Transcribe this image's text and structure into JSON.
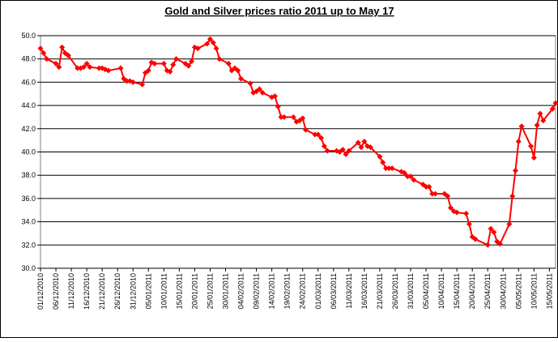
{
  "chart_data": {
    "type": "line",
    "title": "Gold and Silver prices ratio 2011 up to May 17",
    "color": "#ff0000",
    "grid": true,
    "x": [
      "01/12/2010",
      "02/12/2010",
      "03/12/2010",
      "06/12/2010",
      "07/12/2010",
      "08/12/2010",
      "09/12/2010",
      "10/12/2010",
      "13/12/2010",
      "14/12/2010",
      "15/12/2010",
      "16/12/2010",
      "17/12/2010",
      "20/12/2010",
      "21/12/2010",
      "22/12/2010",
      "23/12/2010",
      "27/12/2010",
      "28/12/2010",
      "29/12/2010",
      "30/12/2010",
      "31/12/2010",
      "03/01/2011",
      "04/01/2011",
      "05/01/2011",
      "06/01/2011",
      "07/01/2011",
      "10/01/2011",
      "11/01/2011",
      "12/01/2011",
      "13/01/2011",
      "14/01/2011",
      "17/01/2011",
      "18/01/2011",
      "19/01/2011",
      "20/01/2011",
      "21/01/2011",
      "24/01/2011",
      "25/01/2011",
      "26/01/2011",
      "27/01/2011",
      "28/01/2011",
      "31/01/2011",
      "01/02/2011",
      "02/02/2011",
      "03/02/2011",
      "04/02/2011",
      "07/02/2011",
      "08/02/2011",
      "09/02/2011",
      "10/02/2011",
      "11/02/2011",
      "14/02/2011",
      "15/02/2011",
      "16/02/2011",
      "17/02/2011",
      "18/02/2011",
      "21/02/2011",
      "22/02/2011",
      "23/02/2011",
      "24/02/2011",
      "25/02/2011",
      "28/02/2011",
      "01/03/2011",
      "02/03/2011",
      "03/03/2011",
      "04/03/2011",
      "07/03/2011",
      "08/03/2011",
      "09/03/2011",
      "10/03/2011",
      "11/03/2011",
      "14/03/2011",
      "15/03/2011",
      "16/03/2011",
      "17/03/2011",
      "18/03/2011",
      "21/03/2011",
      "22/03/2011",
      "23/03/2011",
      "24/03/2011",
      "25/03/2011",
      "28/03/2011",
      "29/03/2011",
      "30/03/2011",
      "31/03/2011",
      "01/04/2011",
      "04/04/2011",
      "05/04/2011",
      "06/04/2011",
      "07/04/2011",
      "08/04/2011",
      "11/04/2011",
      "12/04/2011",
      "13/04/2011",
      "14/04/2011",
      "15/04/2011",
      "18/04/2011",
      "19/04/2011",
      "20/04/2011",
      "21/04/2011",
      "25/04/2011",
      "26/04/2011",
      "27/04/2011",
      "28/04/2011",
      "29/04/2011",
      "02/05/2011",
      "03/05/2011",
      "04/05/2011",
      "05/05/2011",
      "06/05/2011",
      "09/05/2011",
      "10/05/2011",
      "11/05/2011",
      "12/05/2011",
      "13/05/2011",
      "16/05/2011",
      "17/05/2011"
    ],
    "values": [
      48.9,
      48.5,
      48.0,
      47.6,
      47.3,
      49.0,
      48.5,
      48.3,
      47.2,
      47.2,
      47.3,
      47.6,
      47.3,
      47.2,
      47.2,
      47.1,
      47.0,
      47.2,
      46.3,
      46.1,
      46.1,
      46.0,
      45.8,
      46.8,
      47.0,
      47.7,
      47.6,
      47.6,
      47.0,
      46.9,
      47.5,
      48.0,
      47.6,
      47.4,
      47.8,
      49.0,
      48.9,
      49.3,
      49.7,
      49.4,
      48.9,
      48.0,
      47.6,
      47.0,
      47.2,
      47.0,
      46.3,
      45.9,
      45.1,
      45.2,
      45.4,
      45.1,
      44.7,
      44.8,
      43.9,
      43.0,
      43.0,
      43.0,
      42.6,
      42.7,
      42.9,
      41.9,
      41.5,
      41.5,
      41.2,
      40.5,
      40.1,
      40.1,
      40.0,
      40.2,
      39.8,
      40.1,
      40.8,
      40.4,
      40.9,
      40.5,
      40.4,
      39.6,
      39.1,
      38.6,
      38.6,
      38.6,
      38.3,
      38.2,
      37.9,
      37.9,
      37.6,
      37.2,
      37.0,
      37.0,
      36.4,
      36.4,
      36.4,
      36.2,
      35.2,
      34.9,
      34.8,
      34.7,
      33.8,
      32.7,
      32.5,
      32.0,
      33.4,
      33.1,
      32.3,
      32.1,
      33.8,
      36.2,
      38.4,
      40.9,
      42.2,
      40.5,
      39.5,
      42.3,
      43.3,
      42.7,
      43.7,
      44.2
    ],
    "xlim": [
      "01/12/2010",
      "17/05/2011"
    ],
    "xticks": [
      "01/12/2010",
      "06/12/2010",
      "11/12/2010",
      "16/12/2010",
      "21/12/2010",
      "26/12/2010",
      "31/12/2010",
      "05/01/2011",
      "10/01/2011",
      "15/01/2011",
      "20/01/2011",
      "25/01/2011",
      "30/01/2011",
      "04/02/2011",
      "09/02/2011",
      "14/02/2011",
      "19/02/2011",
      "24/02/2011",
      "01/03/2011",
      "06/03/2011",
      "11/03/2011",
      "16/03/2011",
      "21/03/2011",
      "26/03/2011",
      "31/03/2011",
      "05/04/2011",
      "10/04/2011",
      "15/04/2011",
      "20/04/2011",
      "25/04/2011",
      "30/04/2011",
      "05/05/2011",
      "10/05/2011",
      "15/05/2011"
    ],
    "ylim": [
      30,
      50
    ],
    "yticks": [
      {
        "value": 30,
        "label": "30.0"
      },
      {
        "value": 32,
        "label": "32.0"
      },
      {
        "value": 34,
        "label": "34.0"
      },
      {
        "value": 36,
        "label": "36.0"
      },
      {
        "value": 38,
        "label": "38.0"
      },
      {
        "value": 40,
        "label": "40.0"
      },
      {
        "value": 42,
        "label": "42.0"
      },
      {
        "value": 44,
        "label": "44.0"
      },
      {
        "value": 46,
        "label": "46.0"
      },
      {
        "value": 48,
        "label": "48.0"
      },
      {
        "value": 50,
        "label": "50.0"
      }
    ]
  }
}
